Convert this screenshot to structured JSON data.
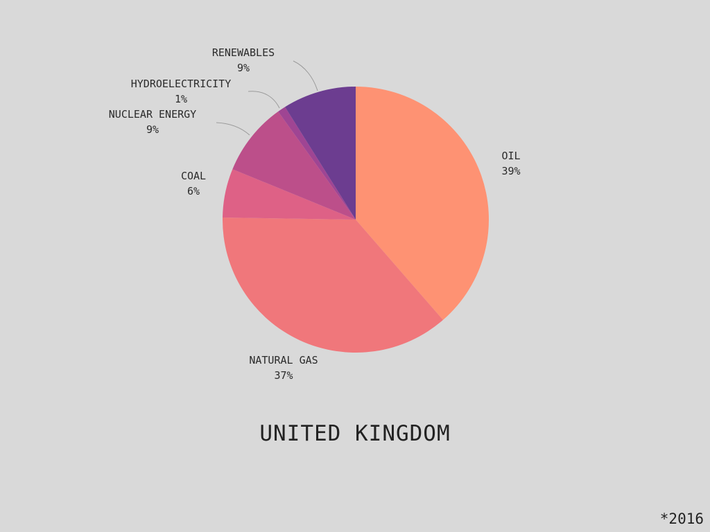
{
  "chart_data": {
    "type": "pie",
    "title": "UNITED KINGDOM",
    "footnote": "*2016",
    "slices": [
      {
        "label": "OIL",
        "value": 39,
        "value_label": "39%",
        "color": "#fe9273"
      },
      {
        "label": "NATURAL GAS",
        "value": 37,
        "value_label": "37%",
        "color": "#f0777b"
      },
      {
        "label": "COAL",
        "value": 6,
        "value_label": "6%",
        "color": "#de6186"
      },
      {
        "label": "NUCLEAR ENERGY",
        "value": 9,
        "value_label": "9%",
        "color": "#bc4f8a"
      },
      {
        "label": "HYDROELECTRICITY",
        "value": 1,
        "value_label": "1%",
        "color": "#9f4593"
      },
      {
        "label": "RENEWABLES",
        "value": 9,
        "value_label": "9%",
        "color": "#6c3d90"
      }
    ],
    "start_angle_deg": 0,
    "direction": "clockwise",
    "leader_lines_for": [
      "RENEWABLES",
      "HYDROELECTRICITY",
      "NUCLEAR ENERGY"
    ]
  }
}
